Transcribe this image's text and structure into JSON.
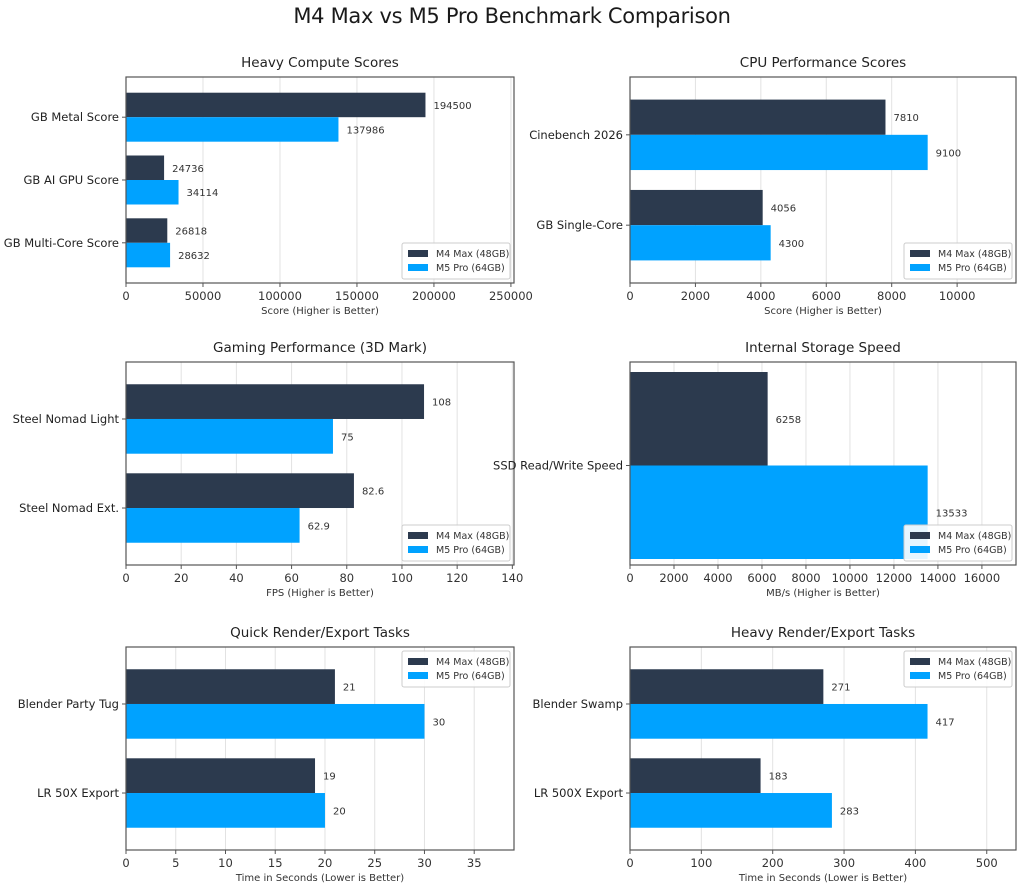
{
  "title": "M4 Max vs M5 Pro Benchmark Comparison",
  "colors": {
    "m4": "#2c3a4e",
    "m5": "#00a2ff",
    "grid": "#e2e2e2",
    "frame": "#555555"
  },
  "chart_data": [
    {
      "type": "bar",
      "orientation": "horizontal",
      "title": "Heavy Compute Scores",
      "categories": [
        "GB Metal Score",
        "GB AI GPU Score",
        "GB Multi-Core Score"
      ],
      "series": [
        {
          "name": "M4 Max (48GB)",
          "values": [
            194500,
            24736,
            26818
          ]
        },
        {
          "name": "M5 Pro (64GB)",
          "values": [
            137986,
            34114,
            28632
          ]
        }
      ],
      "value_labels": [
        [
          "194500",
          "24736",
          "26818"
        ],
        [
          "137986",
          "34114",
          "28632"
        ]
      ],
      "xlabel": "Score (Higher is Better)",
      "xlim": [
        0,
        252000
      ],
      "xticks": [
        0,
        50000,
        100000,
        150000,
        200000,
        250000
      ],
      "legend": "bottom-right",
      "grid": true
    },
    {
      "type": "bar",
      "orientation": "horizontal",
      "title": "CPU Performance Scores",
      "categories": [
        "Cinebench 2026",
        "GB Single-Core"
      ],
      "series": [
        {
          "name": "M4 Max (48GB)",
          "values": [
            7810,
            4056
          ]
        },
        {
          "name": "M5 Pro (64GB)",
          "values": [
            9100,
            4300
          ]
        }
      ],
      "value_labels": [
        [
          "7810",
          "4056"
        ],
        [
          "9100",
          "4300"
        ]
      ],
      "xlabel": "Score (Higher is Better)",
      "xlim": [
        0,
        11800
      ],
      "xticks": [
        0,
        2000,
        4000,
        6000,
        8000,
        10000
      ],
      "legend": "bottom-right",
      "grid": true
    },
    {
      "type": "bar",
      "orientation": "horizontal",
      "title": "Gaming Performance (3D Mark)",
      "categories": [
        "Steel Nomad Light",
        "Steel Nomad Ext."
      ],
      "series": [
        {
          "name": "M4 Max (48GB)",
          "values": [
            108,
            82.6
          ]
        },
        {
          "name": "M5 Pro (64GB)",
          "values": [
            75,
            62.9
          ]
        }
      ],
      "value_labels": [
        [
          "108",
          "82.6"
        ],
        [
          "75",
          "62.9"
        ]
      ],
      "xlabel": "FPS (Higher is Better)",
      "xlim": [
        0,
        140.6
      ],
      "xticks": [
        0,
        20,
        40,
        60,
        80,
        100,
        120,
        140
      ],
      "legend": "bottom-right",
      "grid": true
    },
    {
      "type": "bar",
      "orientation": "horizontal",
      "title": "Internal Storage Speed",
      "categories": [
        "SSD Read/Write Speed"
      ],
      "series": [
        {
          "name": "M4 Max (48GB)",
          "values": [
            6258
          ]
        },
        {
          "name": "M5 Pro (64GB)",
          "values": [
            13533
          ]
        }
      ],
      "value_labels": [
        [
          "6258"
        ],
        [
          "13533"
        ]
      ],
      "xlabel": "MB/s (Higher is Better)",
      "xlim": [
        0,
        17550
      ],
      "xticks": [
        0,
        2000,
        4000,
        6000,
        8000,
        10000,
        12000,
        14000,
        16000
      ],
      "legend": "bottom-right",
      "grid": true
    },
    {
      "type": "bar",
      "orientation": "horizontal",
      "title": "Quick Render/Export Tasks",
      "categories": [
        "Blender Party Tug",
        "LR 50X Export"
      ],
      "series": [
        {
          "name": "M4 Max (48GB)",
          "values": [
            21,
            19
          ]
        },
        {
          "name": "M5 Pro (64GB)",
          "values": [
            30,
            20
          ]
        }
      ],
      "value_labels": [
        [
          "21",
          "19"
        ],
        [
          "30",
          "20"
        ]
      ],
      "xlabel": "Time in Seconds (Lower is Better)",
      "xlim": [
        0,
        39
      ],
      "xticks": [
        0,
        5,
        10,
        15,
        20,
        25,
        30,
        35
      ],
      "legend": "top-right",
      "grid": true
    },
    {
      "type": "bar",
      "orientation": "horizontal",
      "title": "Heavy Render/Export Tasks",
      "categories": [
        "Blender Swamp",
        "LR 500X Export"
      ],
      "series": [
        {
          "name": "M4 Max (48GB)",
          "values": [
            271,
            183
          ]
        },
        {
          "name": "M5 Pro (64GB)",
          "values": [
            417,
            283
          ]
        }
      ],
      "value_labels": [
        [
          "271",
          "183"
        ],
        [
          "417",
          "283"
        ]
      ],
      "xlabel": "Time in Seconds (Lower is Better)",
      "xlim": [
        0,
        541
      ],
      "xticks": [
        0,
        100,
        200,
        300,
        400,
        500
      ],
      "legend": "top-right",
      "grid": true
    }
  ]
}
